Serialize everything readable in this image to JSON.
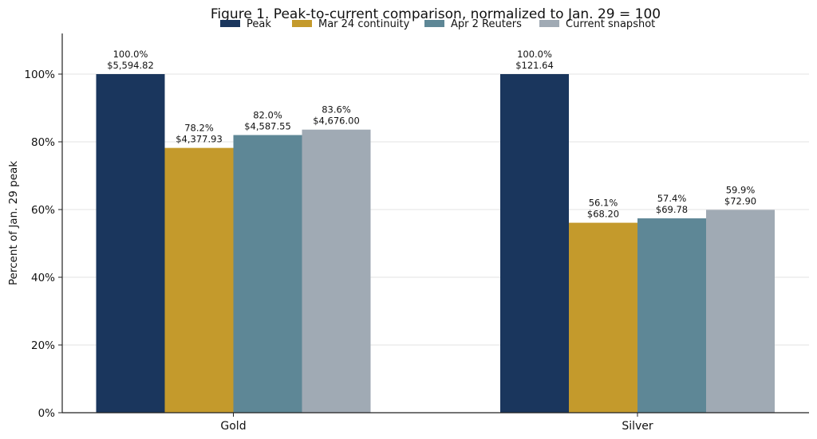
{
  "chart_data": {
    "type": "bar",
    "title": "Figure 1. Peak-to-current comparison, normalized to Jan. 29 = 100",
    "xlabel": "",
    "ylabel": "Percent of Jan. 29 peak",
    "ylim": [
      0,
      112
    ],
    "yticks": [
      0,
      20,
      40,
      60,
      80,
      100
    ],
    "ytick_labels": [
      "0%",
      "20%",
      "40%",
      "60%",
      "80%",
      "100%"
    ],
    "grid": "horizontal",
    "legend_position": "top-center",
    "categories": [
      "Gold",
      "Silver"
    ],
    "series": [
      {
        "name": "Peak",
        "color": "#1a365d",
        "values": [
          100.0,
          100.0
        ],
        "labels": [
          "100.0%",
          "100.0%"
        ],
        "prices": [
          "$5,594.82",
          "$121.64"
        ]
      },
      {
        "name": "Mar 24 continuity",
        "color": "#c49a2c",
        "values": [
          78.2,
          56.1
        ],
        "labels": [
          "78.2%",
          "56.1%"
        ],
        "prices": [
          "$4,377.93",
          "$68.20"
        ]
      },
      {
        "name": "Apr 2 Reuters",
        "color": "#5e8796",
        "values": [
          82.0,
          57.4
        ],
        "labels": [
          "82.0%",
          "57.4%"
        ],
        "prices": [
          "$4,587.55",
          "$69.78"
        ]
      },
      {
        "name": "Current snapshot",
        "color": "#a0aab4",
        "values": [
          83.6,
          59.9
        ],
        "labels": [
          "83.6%",
          "59.9%"
        ],
        "prices": [
          "$4,676.00",
          "$72.90"
        ]
      }
    ]
  }
}
